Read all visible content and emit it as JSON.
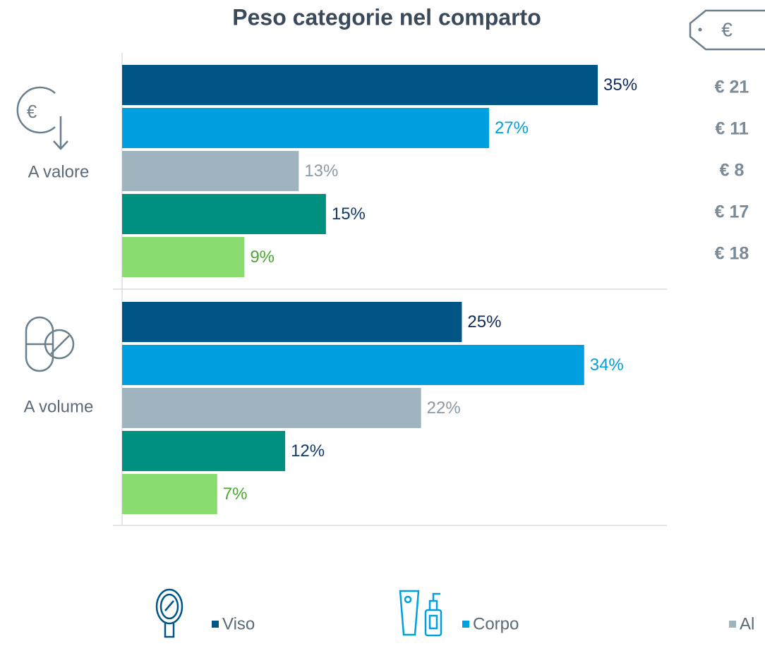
{
  "chart_data": {
    "type": "bar",
    "orientation": "horizontal",
    "title": "Peso categorie nel comparto",
    "categories": [
      "A valore",
      "A volume"
    ],
    "series": [
      {
        "name": "Viso",
        "color": "#005587",
        "label_color": "#0f2a5a",
        "values": [
          35,
          25
        ]
      },
      {
        "name": "Corpo",
        "color": "#00a0e0",
        "label_color": "#00a0e0",
        "values": [
          27,
          34
        ]
      },
      {
        "name": "Al",
        "color": "#a0b4c0",
        "label_color": "#8a9aa6",
        "values": [
          13,
          22
        ]
      },
      {
        "color": "#009080",
        "label_color": "#0f3a6a",
        "values": [
          15,
          12
        ]
      },
      {
        "color": "#88dd6e",
        "label_color": "#4aa832",
        "values": [
          9,
          7
        ]
      }
    ],
    "value_labels": [
      [
        "35%",
        "25%"
      ],
      [
        "27%",
        "34%"
      ],
      [
        "13%",
        "22%"
      ],
      [
        "15%",
        "12%"
      ],
      [
        "9%",
        "7%"
      ]
    ],
    "xlim": [
      0,
      35
    ],
    "price_header": "€",
    "price_labels": [
      "€ 21",
      "€ 11",
      "€ 8",
      "€ 17",
      "€ 18"
    ]
  }
}
